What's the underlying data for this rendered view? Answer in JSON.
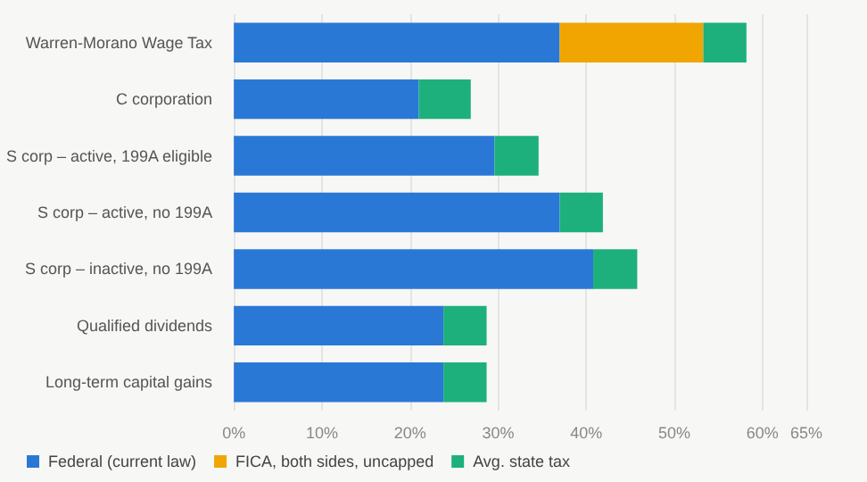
{
  "chart_data": {
    "type": "bar",
    "orientation": "horizontal",
    "stacked": true,
    "categories": [
      "Warren-Morano Wage Tax",
      "C corporation",
      "S corp – active, 199A eligible",
      "S corp – active, no 199A",
      "S corp – inactive, no 199A",
      "Qualified dividends",
      "Long-term capital gains"
    ],
    "series": [
      {
        "name": "Federal (current law)",
        "color": "#2a78d6",
        "values": [
          37,
          21,
          29.6,
          37,
          40.8,
          23.8,
          23.8
        ]
      },
      {
        "name": "FICA, both sides, uncapped",
        "color": "#f0a500",
        "values": [
          16.3,
          0,
          0,
          0,
          0,
          0,
          0
        ]
      },
      {
        "name": "Avg. state tax",
        "color": "#1db07c",
        "values": [
          4.9,
          5.9,
          5,
          4.9,
          5,
          4.9,
          4.9
        ]
      }
    ],
    "xlim": [
      0,
      65
    ],
    "xticks": [
      {
        "value": 0,
        "label": "0%"
      },
      {
        "value": 10,
        "label": "10%"
      },
      {
        "value": 20,
        "label": "20%"
      },
      {
        "value": 30,
        "label": "30%"
      },
      {
        "value": 40,
        "label": "40%"
      },
      {
        "value": 50,
        "label": "50%"
      },
      {
        "value": 60,
        "label": "60%"
      },
      {
        "value": 65,
        "label": "65%"
      }
    ],
    "grid": "x",
    "legend": "bottom left"
  }
}
